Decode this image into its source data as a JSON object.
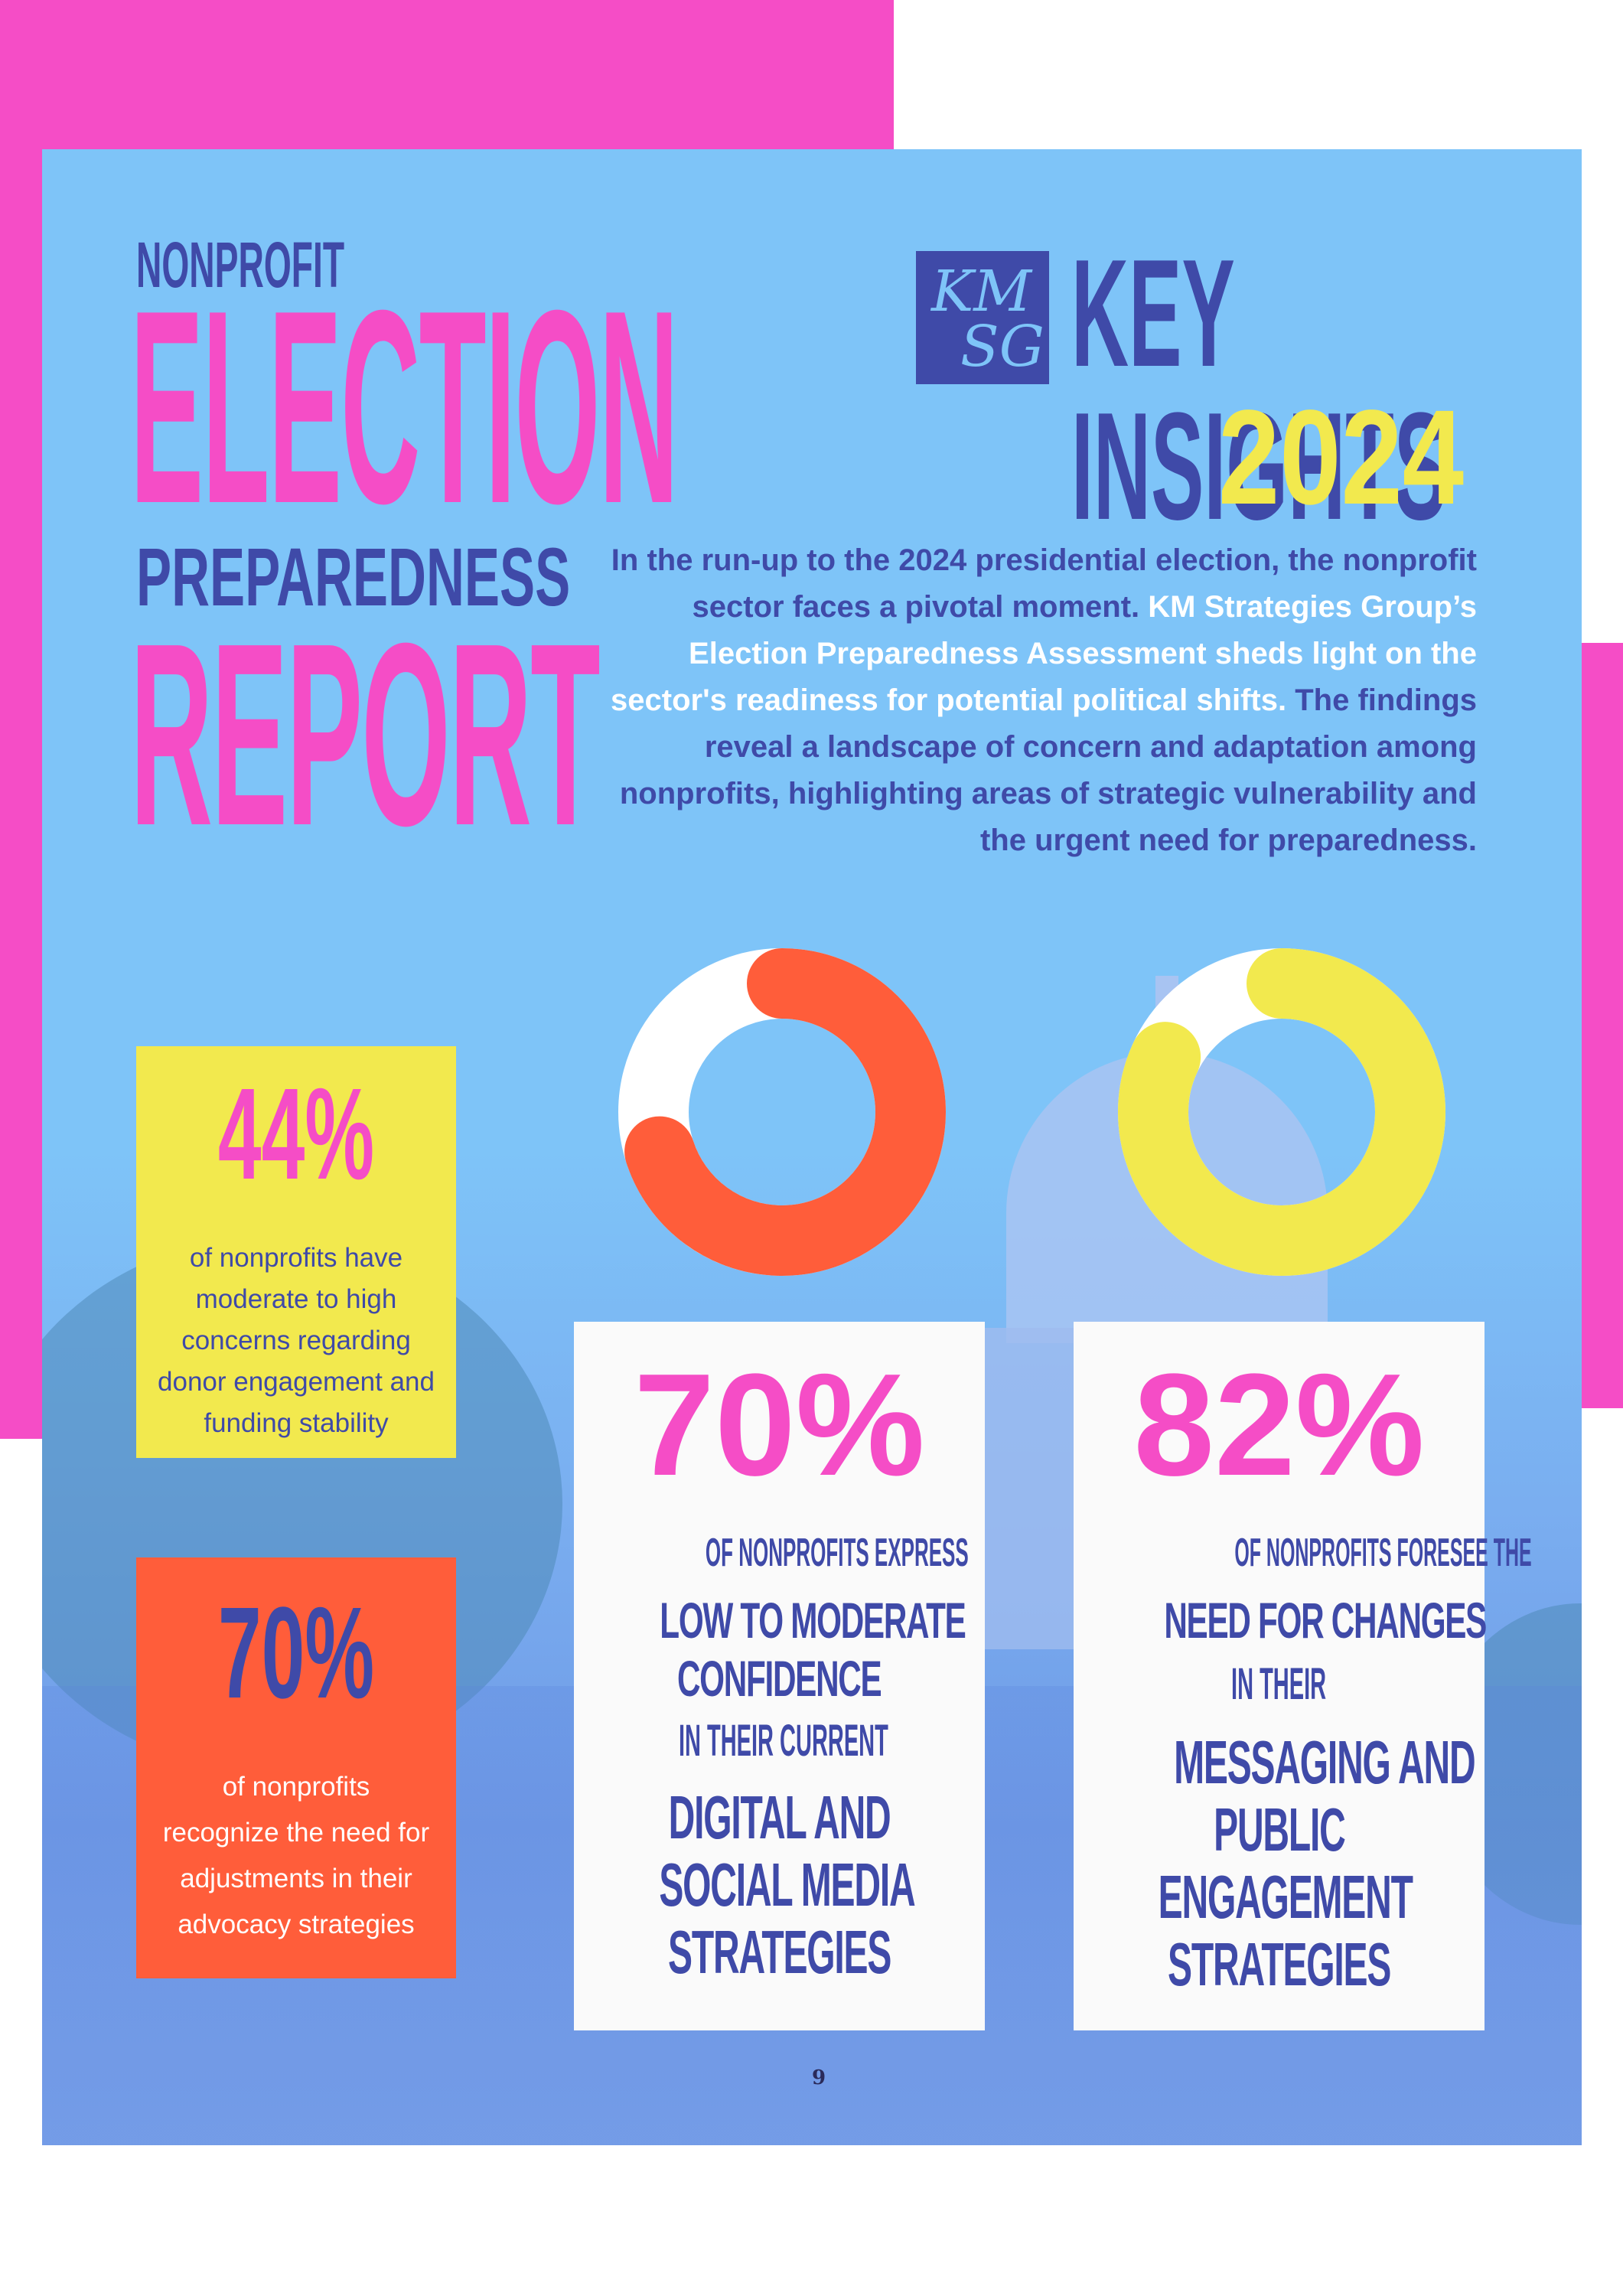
{
  "header": {
    "eyebrow": "NONPROFIT",
    "title_line1": "ELECTION",
    "title_line2": "PREPAREDNESS",
    "title_line3": "REPORT"
  },
  "brand": {
    "logo_top": "KM",
    "logo_bottom": "SG",
    "headline": "KEY INSIGHTS",
    "year": "2024"
  },
  "intro": {
    "part1": "In the run-up to the 2024 presidential election, the nonprofit sector faces a pivotal moment. ",
    "part2": "KM Strategies Group’s Election Preparedness Assessment sheds light on the sector's readiness for potential political shifts.",
    "part3": " The findings reveal a landscape of concern and adaptation among nonprofits, highlighting areas of strategic vulnerability and the urgent need for preparedness."
  },
  "stats": {
    "donor": {
      "value": "44%",
      "line1": "of nonprofits have",
      "line2": "moderate to high",
      "line3": "concerns regarding",
      "line4": "donor engagement and",
      "line5": "funding stability"
    },
    "advocacy": {
      "value": "70%",
      "line1": "of nonprofits",
      "line2": "recognize the need for",
      "line3": "adjustments in their",
      "line4": "advocacy strategies"
    },
    "digital": {
      "value": "70%",
      "fraction": 0.7,
      "line1": "OF NONPROFITS EXPRESS",
      "line2": "LOW TO MODERATE",
      "line3": "CONFIDENCE",
      "line4": "IN THEIR CURRENT",
      "line5": "DIGITAL AND",
      "line6": "SOCIAL MEDIA",
      "line7": "STRATEGIES"
    },
    "messaging": {
      "value": "82%",
      "fraction": 0.82,
      "line1": "OF NONPROFITS FORESEE THE",
      "line2": "NEED FOR CHANGES",
      "line3": "IN THEIR",
      "line4": "MESSAGING AND",
      "line5": "PUBLIC",
      "line6": "ENGAGEMENT",
      "line7": "STRATEGIES"
    }
  },
  "colors": {
    "pink": "#f54dc6",
    "navy": "#3f4aa8",
    "yellow": "#f2e94e",
    "orange": "#ff5d3a",
    "sky": "#7ec4f8"
  },
  "page_number": "9"
}
